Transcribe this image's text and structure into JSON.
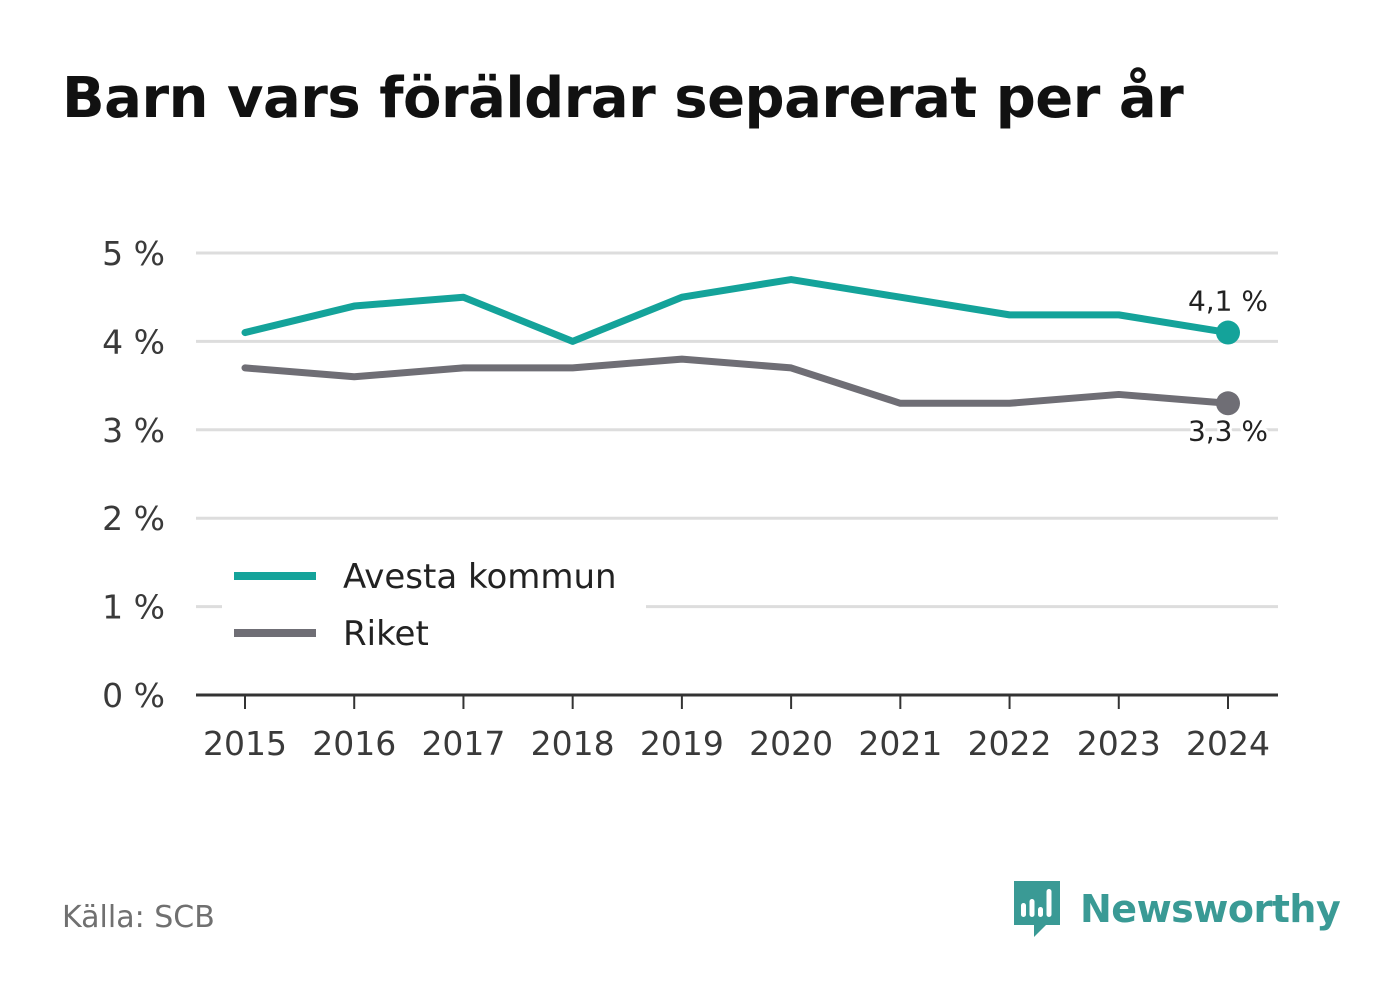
{
  "title": "Barn vars föräldrar separerat per år",
  "source": "Källa: SCB",
  "brand": {
    "name": "Newsworthy",
    "icon": "newsworthy-logo-icon",
    "color": "#3a9a95"
  },
  "colors": {
    "avesta": "#14a39a",
    "riket": "#6f6e75",
    "grid": "#dddddd",
    "axis": "#333333"
  },
  "chart_data": {
    "type": "line",
    "title": "Barn vars föräldrar separerat per år",
    "xlabel": "",
    "ylabel": "",
    "categories": [
      "2015",
      "2016",
      "2017",
      "2018",
      "2019",
      "2020",
      "2021",
      "2022",
      "2023",
      "2024"
    ],
    "yticks": [
      "0 %",
      "1 %",
      "2 %",
      "3 %",
      "4 %",
      "5 %"
    ],
    "ylim": [
      0,
      5
    ],
    "grid": true,
    "legend": "lower-left",
    "series": [
      {
        "name": "Avesta kommun",
        "values": [
          4.1,
          4.4,
          4.5,
          4.0,
          4.5,
          4.7,
          4.5,
          4.3,
          4.3,
          4.1
        ],
        "end_label": "4,1 %"
      },
      {
        "name": "Riket",
        "values": [
          3.7,
          3.6,
          3.7,
          3.7,
          3.8,
          3.7,
          3.3,
          3.3,
          3.4,
          3.3
        ],
        "end_label": "3,3 %"
      }
    ]
  }
}
